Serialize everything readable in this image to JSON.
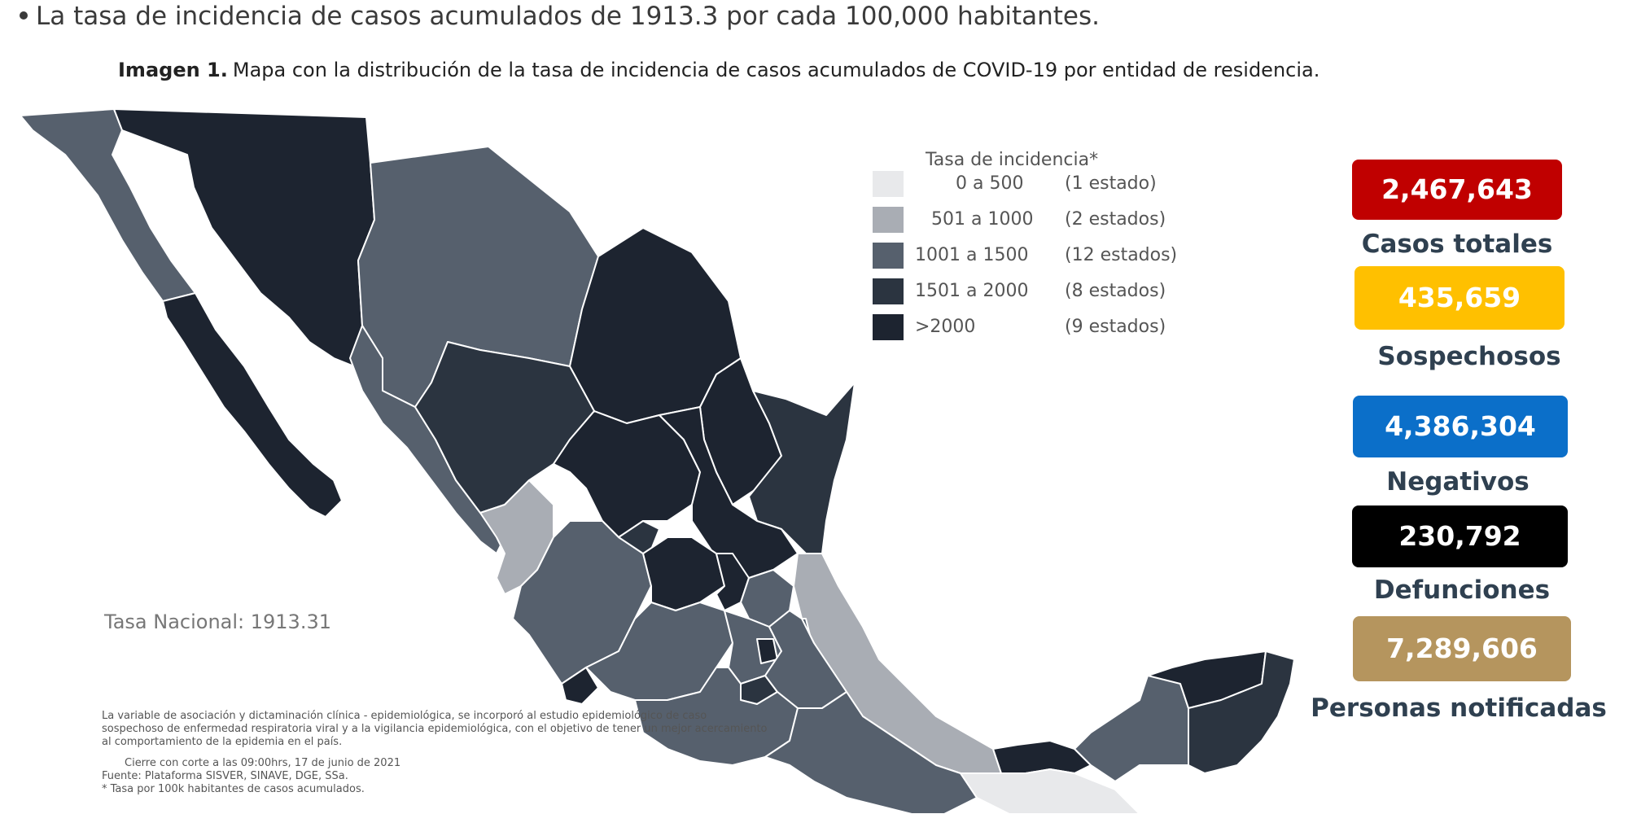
{
  "header": {
    "bullet_text": "La tasa de incidencia de casos acumulados de 1913.3 por cada 100,000 habitantes.",
    "caption_bold": "Imagen 1.",
    "caption_text": "Mapa con la distribución de la tasa de incidencia de casos acumulados de COVID-19 por entidad de residencia."
  },
  "legend": {
    "title": "Tasa de incidencia*",
    "items": [
      {
        "range": "0 a    500",
        "count": "(1 estado)",
        "color": "#e8e9eb"
      },
      {
        "range": "501 a   1000",
        "count": "(2 estados)",
        "color": "#a9adb4"
      },
      {
        "range": "1001 a   1500",
        "count": "(12 estados)",
        "color": "#56606d"
      },
      {
        "range": "1501 a   2000",
        "count": "(8 estados)",
        "color": "#2b3440"
      },
      {
        "range": ">2000",
        "count": "(9 estados)",
        "color": "#1d2430"
      }
    ]
  },
  "map": {
    "tasa_nacional": "Tasa Nacional: 1913.31"
  },
  "footnote": {
    "para1": "La variable de asociación y dictaminación clínica - epidemiológica, se incorporó al estudio epidemiológico de caso sospechoso de enfermedad respiratoria viral y a la vigilancia epidemiológica, con el objetivo de tener un mejor acercamiento al comportamiento de la epidemia en el país.",
    "cierre": "Cierre con corte a las 09:00hrs, 17 de junio de 2021",
    "fuente": "Fuente: Plataforma SISVER, SINAVE, DGE, SSa.",
    "tasa_note": "* Tasa por 100k habitantes de casos acumulados."
  },
  "stats": [
    {
      "value": "2,467,643",
      "label": "Casos totales",
      "color": "#c00000"
    },
    {
      "value": "435,659",
      "label": "Sospechosos",
      "color": "#ffc000"
    },
    {
      "value": "4,386,304",
      "label": "Negativos",
      "color": "#0b6fc9"
    },
    {
      "value": "230,792",
      "label": "Defunciones",
      "color": "#000000"
    },
    {
      "value": "7,289,606",
      "label": "Personas notificadas",
      "color": "#b5955e"
    }
  ]
}
